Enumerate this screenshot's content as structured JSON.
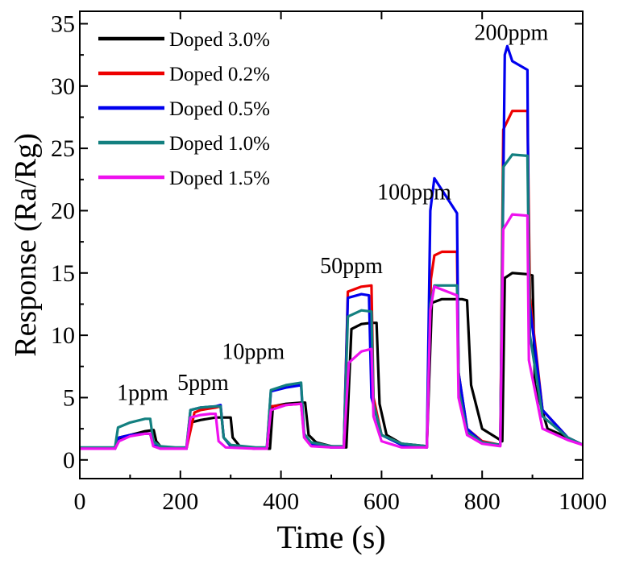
{
  "chart_data": {
    "type": "line",
    "title": "",
    "xlabel": "Time (s)",
    "ylabel": "Response (Ra/Rg)",
    "xlim": [
      0,
      1000
    ],
    "ylim": [
      -1.5,
      36
    ],
    "xticks": [
      0,
      200,
      400,
      600,
      800,
      1000
    ],
    "yticks": [
      0,
      5,
      10,
      15,
      20,
      25,
      30,
      35
    ],
    "grid": false,
    "legend_position": "top-left",
    "annotations": [
      {
        "text": "1ppm",
        "x": 125,
        "y": 4.8
      },
      {
        "text": "5ppm",
        "x": 245,
        "y": 5.6
      },
      {
        "text": "10ppm",
        "x": 345,
        "y": 8.1
      },
      {
        "text": "50ppm",
        "x": 540,
        "y": 15.0
      },
      {
        "text": "100ppm",
        "x": 665,
        "y": 20.9
      },
      {
        "text": "200ppm",
        "x": 858,
        "y": 33.7
      }
    ],
    "series": [
      {
        "name": "Doped 3.0%",
        "color": "#000000",
        "x": [
          0,
          70,
          78,
          100,
          130,
          147,
          152,
          162,
          190,
          212,
          220,
          240,
          270,
          300,
          304,
          318,
          350,
          378,
          384,
          410,
          440,
          448,
          455,
          470,
          500,
          530,
          540,
          560,
          580,
          590,
          596,
          610,
          640,
          690,
          700,
          720,
          760,
          770,
          778,
          800,
          840,
          845,
          860,
          890,
          900,
          905,
          930,
          970,
          1000
        ],
        "y": [
          0.9,
          0.9,
          1.6,
          2.0,
          2.3,
          2.4,
          1.5,
          1.0,
          0.9,
          0.9,
          3.0,
          3.2,
          3.4,
          3.4,
          1.8,
          1.1,
          0.9,
          0.9,
          4.3,
          4.5,
          4.6,
          4.6,
          2.0,
          1.4,
          1.1,
          1.0,
          10.5,
          10.9,
          11.0,
          11.0,
          4.5,
          2.0,
          1.3,
          1.1,
          12.6,
          12.9,
          12.9,
          12.8,
          6.0,
          2.5,
          1.5,
          14.6,
          15.0,
          14.9,
          14.8,
          6.0,
          2.5,
          1.8,
          1.2
        ]
      },
      {
        "name": "Doped 0.2%",
        "color": "#ee0000",
        "x": [
          0,
          70,
          78,
          100,
          130,
          140,
          146,
          160,
          190,
          212,
          228,
          240,
          270,
          280,
          286,
          300,
          350,
          372,
          380,
          410,
          440,
          446,
          460,
          500,
          525,
          533,
          560,
          580,
          584,
          600,
          640,
          690,
          698,
          705,
          720,
          750,
          753,
          770,
          800,
          836,
          842,
          860,
          890,
          895,
          920,
          970,
          1000
        ],
        "y": [
          0.9,
          0.9,
          1.8,
          2.0,
          2.1,
          2.1,
          1.2,
          1.0,
          0.9,
          0.9,
          3.8,
          4.0,
          4.2,
          4.3,
          1.8,
          1.1,
          0.9,
          0.9,
          4.3,
          4.4,
          4.5,
          2.0,
          1.3,
          1.0,
          1.0,
          13.5,
          13.9,
          14.0,
          5.0,
          2.0,
          1.3,
          1.0,
          14.5,
          16.4,
          16.7,
          16.7,
          7.0,
          2.5,
          1.5,
          1.2,
          26.5,
          28.0,
          28.0,
          13.0,
          4.0,
          1.8,
          1.2
        ]
      },
      {
        "name": "Doped 0.5%",
        "color": "#0000ee",
        "x": [
          0,
          70,
          78,
          100,
          130,
          140,
          146,
          160,
          190,
          212,
          220,
          240,
          270,
          280,
          286,
          300,
          350,
          372,
          380,
          410,
          440,
          446,
          460,
          500,
          525,
          533,
          560,
          575,
          580,
          600,
          640,
          690,
          697,
          705,
          750,
          753,
          770,
          800,
          836,
          845,
          850,
          860,
          890,
          893,
          920,
          970,
          1000
        ],
        "y": [
          0.9,
          0.9,
          1.8,
          2.0,
          2.1,
          2.1,
          1.2,
          1.0,
          0.9,
          0.9,
          4.0,
          4.2,
          4.3,
          4.4,
          1.8,
          1.1,
          0.9,
          0.9,
          5.5,
          5.8,
          6.0,
          2.0,
          1.3,
          1.0,
          1.0,
          13.0,
          13.3,
          13.2,
          5.0,
          2.0,
          1.2,
          1.0,
          20.0,
          22.6,
          19.8,
          7.0,
          2.5,
          1.4,
          1.2,
          32.5,
          33.2,
          32.0,
          31.3,
          13.0,
          4.0,
          1.8,
          1.2
        ]
      },
      {
        "name": "Doped 1.0%",
        "color": "#138080",
        "x": [
          0,
          70,
          76,
          100,
          130,
          140,
          146,
          160,
          190,
          212,
          220,
          240,
          270,
          280,
          286,
          300,
          350,
          372,
          380,
          410,
          440,
          446,
          460,
          500,
          525,
          533,
          560,
          580,
          584,
          600,
          640,
          690,
          697,
          705,
          750,
          754,
          770,
          800,
          836,
          842,
          860,
          890,
          895,
          920,
          970,
          1000
        ],
        "y": [
          1.0,
          1.0,
          2.6,
          3.0,
          3.3,
          3.3,
          1.5,
          1.1,
          1.0,
          1.0,
          4.0,
          4.2,
          4.3,
          4.3,
          1.8,
          1.2,
          1.0,
          1.0,
          5.6,
          6.0,
          6.2,
          2.1,
          1.4,
          1.1,
          1.1,
          11.5,
          12.0,
          11.9,
          4.5,
          2.0,
          1.3,
          1.1,
          12.5,
          14.0,
          14.0,
          5.5,
          2.2,
          1.4,
          1.2,
          23.5,
          24.5,
          24.4,
          10.0,
          3.5,
          1.8,
          1.2
        ]
      },
      {
        "name": "Doped 1.5%",
        "color": "#ee11ee",
        "x": [
          0,
          70,
          78,
          100,
          130,
          140,
          146,
          160,
          190,
          212,
          220,
          240,
          260,
          270,
          276,
          290,
          350,
          372,
          380,
          410,
          440,
          446,
          460,
          500,
          525,
          535,
          560,
          580,
          584,
          600,
          640,
          690,
          697,
          705,
          750,
          753,
          770,
          800,
          836,
          842,
          860,
          890,
          893,
          920,
          970,
          1000
        ],
        "y": [
          0.9,
          0.9,
          1.5,
          1.9,
          2.1,
          2.1,
          1.1,
          0.9,
          0.9,
          0.9,
          3.4,
          3.6,
          3.7,
          3.7,
          1.5,
          1.0,
          0.9,
          0.9,
          4.0,
          4.4,
          4.5,
          1.8,
          1.1,
          1.0,
          1.0,
          7.8,
          8.7,
          8.9,
          3.5,
          1.5,
          1.0,
          1.0,
          12.0,
          13.9,
          13.2,
          5.0,
          2.0,
          1.3,
          1.1,
          18.5,
          19.7,
          19.6,
          8.0,
          2.5,
          1.6,
          1.2
        ]
      }
    ]
  }
}
